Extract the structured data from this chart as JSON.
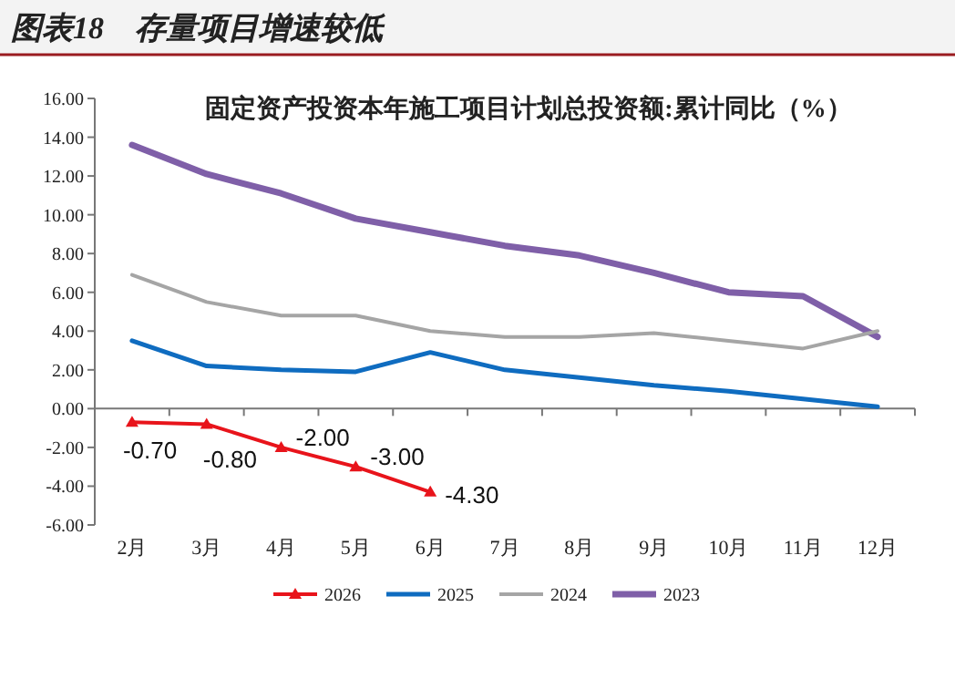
{
  "chart_data": {
    "type": "line",
    "title": "图表18　存量项目增速较低",
    "subtitle": "固定资产投资本年施工项目计划总投资额:累计同比（%）",
    "categories": [
      "2月",
      "3月",
      "4月",
      "5月",
      "6月",
      "7月",
      "8月",
      "9月",
      "10月",
      "11月",
      "12月"
    ],
    "ylim": [
      -6,
      16
    ],
    "yticks": [
      {
        "value": -6,
        "label": "-6.00"
      },
      {
        "value": -4,
        "label": "-4.00"
      },
      {
        "value": -2,
        "label": "-2.00"
      },
      {
        "value": 0,
        "label": "0.00"
      },
      {
        "value": 2,
        "label": "2.00"
      },
      {
        "value": 4,
        "label": "4.00"
      },
      {
        "value": 6,
        "label": "6.00"
      },
      {
        "value": 8,
        "label": "8.00"
      },
      {
        "value": 10,
        "label": "10.00"
      },
      {
        "value": 12,
        "label": "12.00"
      },
      {
        "value": 14,
        "label": "14.00"
      },
      {
        "value": 16,
        "label": "16.00"
      }
    ],
    "legend": "bottom",
    "series": [
      {
        "name": "2026",
        "color": "#e8141b",
        "marker": "triangle",
        "values": [
          -0.7,
          -0.8,
          -2.0,
          -3.0,
          -4.3,
          null,
          null,
          null,
          null,
          null,
          null
        ],
        "value_labels": [
          "-0.70",
          "-0.80",
          "-2.00",
          "-3.00",
          "-4.30",
          null,
          null,
          null,
          null,
          null,
          null
        ]
      },
      {
        "name": "2025",
        "color": "#0f6cc0",
        "values": [
          3.5,
          2.2,
          2.0,
          1.9,
          2.9,
          2.0,
          1.6,
          1.2,
          0.9,
          0.5,
          0.1
        ]
      },
      {
        "name": "2024",
        "color": "#a5a5a5",
        "values": [
          6.9,
          5.5,
          4.8,
          4.8,
          4.0,
          3.7,
          3.7,
          3.9,
          3.5,
          3.1,
          4.0
        ]
      },
      {
        "name": "2023",
        "color": "#7f5fa8",
        "values": [
          13.6,
          12.1,
          11.1,
          9.8,
          9.1,
          8.4,
          7.9,
          7.0,
          6.0,
          5.8,
          3.7
        ]
      }
    ]
  }
}
